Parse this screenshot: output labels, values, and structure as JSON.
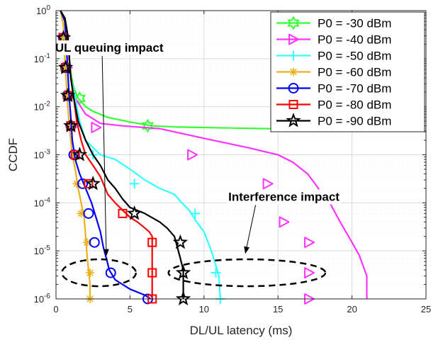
{
  "chart_data": {
    "type": "line",
    "xlabel": "DL/UL latency (ms)",
    "ylabel": "CCDF",
    "xlim": [
      0,
      25
    ],
    "ylim_log10": [
      -6,
      0
    ],
    "y_scale": "log",
    "grid": true,
    "legend_position": "top-right",
    "x_ticks": [
      0,
      5,
      10,
      15,
      20,
      25
    ],
    "y_ticks": [
      {
        "base": "10",
        "exp": "-6"
      },
      {
        "base": "10",
        "exp": "-5"
      },
      {
        "base": "10",
        "exp": "-4"
      },
      {
        "base": "10",
        "exp": "-3"
      },
      {
        "base": "10",
        "exp": "-2"
      },
      {
        "base": "10",
        "exp": "-1"
      },
      {
        "base": "10",
        "exp": "0"
      }
    ],
    "series": [
      {
        "name": "P0 = -30 dBm",
        "color": "#33ff33",
        "marker": "hexagram",
        "points": [
          [
            0.3,
            1
          ],
          [
            0.6,
            0.7
          ],
          [
            0.8,
            0.3
          ],
          [
            0.9,
            0.1
          ],
          [
            1,
            0.05
          ],
          [
            1.2,
            0.025
          ],
          [
            1.5,
            0.015
          ],
          [
            2,
            0.01
          ],
          [
            2.5,
            0.008
          ],
          [
            3.5,
            0.006
          ],
          [
            5,
            0.0048
          ],
          [
            6.5,
            0.004
          ],
          [
            8,
            0.0038
          ],
          [
            12,
            0.0036
          ],
          [
            17,
            0.0034
          ],
          [
            21,
            0.0033
          ],
          [
            25,
            0.0032
          ]
        ],
        "marker_points": [
          [
            0.5,
            0.27
          ],
          [
            0.65,
            0.065
          ],
          [
            0.8,
            0.017
          ],
          [
            1.6,
            0.015
          ],
          [
            6.2,
            0.004
          ]
        ]
      },
      {
        "name": "P0 = -40 dBm",
        "color": "#ff33ff",
        "marker": "triangle-right",
        "points": [
          [
            0.3,
            1
          ],
          [
            0.6,
            0.6
          ],
          [
            0.8,
            0.3
          ],
          [
            0.9,
            0.1
          ],
          [
            1,
            0.04
          ],
          [
            1.3,
            0.015
          ],
          [
            2,
            0.007
          ],
          [
            3,
            0.0045
          ],
          [
            4.5,
            0.004
          ],
          [
            7,
            0.0035
          ],
          [
            10,
            0.0022
          ],
          [
            13,
            0.0014
          ],
          [
            15,
            0.001
          ],
          [
            16,
            0.0007
          ],
          [
            17,
            0.0004
          ],
          [
            17.5,
            0.00025
          ],
          [
            18,
            0.00015
          ],
          [
            18.5,
            0.0001
          ],
          [
            19.2,
            4e-05
          ],
          [
            20,
            1.5e-05
          ],
          [
            20.5,
            8e-06
          ],
          [
            21,
            3e-06
          ],
          [
            21,
            1e-06
          ]
        ],
        "marker_points": [
          [
            0.5,
            0.27
          ],
          [
            0.75,
            0.065
          ],
          [
            0.9,
            0.017
          ],
          [
            1.2,
            0.004
          ],
          [
            2.7,
            0.0037
          ],
          [
            9.2,
            0.001
          ],
          [
            14.3,
            0.00025
          ],
          [
            15.4,
            4e-05
          ],
          [
            17.1,
            1.5e-05
          ],
          [
            17.1,
            3.5e-06
          ],
          [
            17.1,
            1e-06
          ]
        ]
      },
      {
        "name": "P0 = -50 dBm",
        "color": "#33ffff",
        "marker": "plus",
        "points": [
          [
            0.3,
            1
          ],
          [
            0.6,
            0.7
          ],
          [
            0.8,
            0.3
          ],
          [
            0.9,
            0.1
          ],
          [
            1,
            0.04
          ],
          [
            1.3,
            0.015
          ],
          [
            1.6,
            0.005
          ],
          [
            2,
            0.002
          ],
          [
            3,
            0.001
          ],
          [
            4,
            0.0008
          ],
          [
            5,
            0.0005
          ],
          [
            6,
            0.0003
          ],
          [
            7,
            0.0002
          ],
          [
            8,
            0.00015
          ],
          [
            8.5,
            0.0001
          ],
          [
            9,
            7e-05
          ],
          [
            9.5,
            4e-05
          ],
          [
            10,
            2.5e-05
          ],
          [
            10.5,
            1e-05
          ],
          [
            10.8,
            5e-06
          ],
          [
            11,
            3e-06
          ],
          [
            11.1,
            1e-06
          ]
        ],
        "marker_points": [
          [
            0.5,
            0.27
          ],
          [
            0.65,
            0.065
          ],
          [
            0.8,
            0.017
          ],
          [
            1.1,
            0.004
          ],
          [
            2.5,
            0.001
          ],
          [
            5.3,
            0.00025
          ],
          [
            9.4,
            6e-05
          ],
          [
            10.8,
            3.5e-06
          ],
          [
            11.1,
            1e-06
          ]
        ]
      },
      {
        "name": "P0 = -60 dBm",
        "color": "#edb120",
        "marker": "asterisk",
        "points": [
          [
            0.3,
            1
          ],
          [
            0.5,
            0.5
          ],
          [
            0.6,
            0.1
          ],
          [
            0.7,
            0.03
          ],
          [
            0.8,
            0.01
          ],
          [
            0.9,
            0.004
          ],
          [
            1,
            0.002
          ],
          [
            1.1,
            0.001
          ],
          [
            1.3,
            0.0005
          ],
          [
            1.5,
            0.0002
          ],
          [
            1.7,
            0.0001
          ],
          [
            1.9,
            5e-05
          ],
          [
            2,
            2e-05
          ],
          [
            2.1,
            8e-06
          ],
          [
            2.2,
            4e-06
          ],
          [
            2.3,
            2e-06
          ],
          [
            2.3,
            1e-06
          ]
        ],
        "marker_points": [
          [
            0.5,
            0.27
          ],
          [
            0.65,
            0.065
          ],
          [
            0.8,
            0.017
          ],
          [
            1,
            0.004
          ],
          [
            1.2,
            0.001
          ],
          [
            1.4,
            0.00025
          ],
          [
            1.7,
            6e-05
          ],
          [
            2.1,
            1.5e-05
          ],
          [
            2.3,
            3.5e-06
          ],
          [
            2.3,
            1e-06
          ]
        ]
      },
      {
        "name": "P0 = -70 dBm",
        "color": "#0000ff",
        "marker": "circle",
        "points": [
          [
            0.3,
            1
          ],
          [
            0.6,
            0.6
          ],
          [
            0.7,
            0.2
          ],
          [
            0.8,
            0.05
          ],
          [
            0.9,
            0.015
          ],
          [
            1,
            0.006
          ],
          [
            1.1,
            0.002
          ],
          [
            1.3,
            0.0008
          ],
          [
            1.6,
            0.0004
          ],
          [
            2,
            0.0002
          ],
          [
            2.4,
            0.0001
          ],
          [
            2.7,
            5e-05
          ],
          [
            3,
            2.5e-05
          ],
          [
            3.2,
            1.2e-05
          ],
          [
            3.4,
            7e-06
          ],
          [
            3.6,
            4e-06
          ],
          [
            4,
            2.5e-06
          ],
          [
            5,
            1.6e-06
          ],
          [
            6,
            1.2e-06
          ],
          [
            6.4,
            1e-06
          ]
        ],
        "marker_points": [
          [
            0.5,
            0.27
          ],
          [
            0.65,
            0.065
          ],
          [
            0.8,
            0.017
          ],
          [
            1,
            0.004
          ],
          [
            1.2,
            0.001
          ],
          [
            1.8,
            0.00025
          ],
          [
            2.2,
            6e-05
          ],
          [
            2.6,
            1.5e-05
          ],
          [
            3.7,
            3.5e-06
          ],
          [
            6.2,
            1e-06
          ]
        ]
      },
      {
        "name": "P0 = -80 dBm",
        "color": "#ff0000",
        "marker": "square",
        "points": [
          [
            0.3,
            1
          ],
          [
            0.6,
            0.7
          ],
          [
            0.8,
            0.3
          ],
          [
            0.9,
            0.1
          ],
          [
            1,
            0.04
          ],
          [
            1.2,
            0.015
          ],
          [
            1.4,
            0.005
          ],
          [
            1.7,
            0.002
          ],
          [
            2,
            0.001
          ],
          [
            2.5,
            0.0006
          ],
          [
            3,
            0.00035
          ],
          [
            3.5,
            0.00015
          ],
          [
            4,
            0.0001
          ],
          [
            4.5,
            7e-05
          ],
          [
            5,
            5e-05
          ],
          [
            5.5,
            4e-05
          ],
          [
            6,
            3e-05
          ],
          [
            6.3,
            2.5e-05
          ],
          [
            6.5,
            2e-05
          ],
          [
            6.5,
            1e-06
          ]
        ],
        "marker_points": [
          [
            0.5,
            0.27
          ],
          [
            0.65,
            0.065
          ],
          [
            0.8,
            0.017
          ],
          [
            1,
            0.004
          ],
          [
            1.3,
            0.001
          ],
          [
            2.2,
            0.00025
          ],
          [
            4.5,
            6e-05
          ],
          [
            6.5,
            1.5e-05
          ],
          [
            6.5,
            3.5e-06
          ],
          [
            6.5,
            1e-06
          ]
        ]
      },
      {
        "name": "P0 = -90 dBm",
        "color": "#000000",
        "marker": "pentagram",
        "points": [
          [
            0.3,
            1
          ],
          [
            0.6,
            0.7
          ],
          [
            0.8,
            0.3
          ],
          [
            0.9,
            0.1
          ],
          [
            1,
            0.04
          ],
          [
            1.2,
            0.015
          ],
          [
            1.5,
            0.005
          ],
          [
            2,
            0.002
          ],
          [
            2.5,
            0.001
          ],
          [
            3,
            0.0006
          ],
          [
            3.5,
            0.0003
          ],
          [
            4,
            0.0002
          ],
          [
            4.5,
            0.00012
          ],
          [
            5,
            8e-05
          ],
          [
            6,
            6e-05
          ],
          [
            7,
            4e-05
          ],
          [
            7.5,
            3e-05
          ],
          [
            8,
            2e-05
          ],
          [
            8.2,
            1.2e-05
          ],
          [
            8.4,
            7e-06
          ],
          [
            8.6,
            4e-06
          ],
          [
            8.6,
            1e-06
          ]
        ],
        "marker_points": [
          [
            0.5,
            0.27
          ],
          [
            0.65,
            0.065
          ],
          [
            0.8,
            0.017
          ],
          [
            1,
            0.004
          ],
          [
            1.6,
            0.001
          ],
          [
            2.5,
            0.00025
          ],
          [
            5.3,
            6e-05
          ],
          [
            8.4,
            1.5e-05
          ],
          [
            8.6,
            3.5e-06
          ],
          [
            8.6,
            1e-06
          ]
        ]
      }
    ],
    "annotations": [
      {
        "text": "UL queuing impact",
        "x": 3.6,
        "y": 0.14,
        "arrow_to": [
          3.4,
          8e-06
        ]
      },
      {
        "text": "Interference impact",
        "x": 15.4,
        "y": 0.00011,
        "arrow_to": [
          12.8,
          9e-06
        ]
      }
    ],
    "ellipses": [
      {
        "cx": 2.9,
        "cy": 3.5e-06,
        "rx": 2.5,
        "ry_decades": 0.28
      },
      {
        "cx": 12.9,
        "cy": 3.5e-06,
        "rx": 5.3,
        "ry_decades": 0.28
      }
    ]
  }
}
